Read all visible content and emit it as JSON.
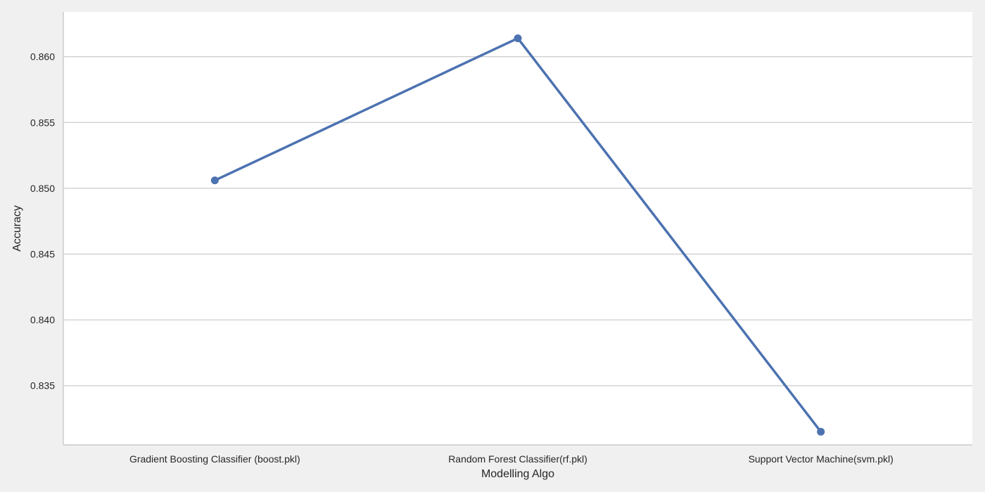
{
  "chart_data": {
    "type": "line",
    "xlabel": "Modelling Algo",
    "ylabel": "Accuracy",
    "categories": [
      "Gradient Boosting Classifier (boost.pkl)",
      "Random Forest Classifier(rf.pkl)",
      "Support Vector Machine(svm.pkl)"
    ],
    "series": [
      {
        "values": [
          0.8506,
          0.8614,
          0.8315
        ]
      }
    ],
    "yticks": [
      "0.835",
      "0.840",
      "0.845",
      "0.850",
      "0.855",
      "0.860"
    ],
    "ylim": [
      0.8305,
      0.8634
    ],
    "grid": "horizontal",
    "colors": {
      "line": "#4c72b0",
      "grid": "#cccccc",
      "plot_bg": "#ffffff",
      "page_bg": "#f0f0f0",
      "axis": "#cccccc"
    }
  }
}
